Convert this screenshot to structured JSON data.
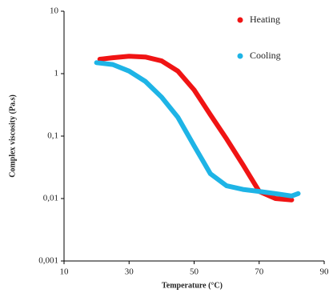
{
  "chart_data": {
    "type": "line",
    "xlabel": "Temperature (°C)",
    "ylabel": "Complex viscosity (Pa.s)",
    "xlim": [
      10,
      90
    ],
    "xticks": [
      10,
      30,
      50,
      70,
      90
    ],
    "ylim": [
      0.001,
      10
    ],
    "yticks": [
      {
        "value": 0.001,
        "label": "0,001"
      },
      {
        "value": 0.01,
        "label": "0,01"
      },
      {
        "value": 0.1,
        "label": "0,1"
      },
      1,
      10
    ],
    "log_y": true,
    "grid": false,
    "legend": "upper right",
    "series": [
      {
        "name": "Heating",
        "color": "#f01414",
        "x": [
          21,
          25,
          30,
          35,
          40,
          45,
          50,
          55,
          60,
          65,
          70,
          75,
          80
        ],
        "values": [
          1.7,
          1.8,
          1.9,
          1.85,
          1.6,
          1.1,
          0.55,
          0.22,
          0.09,
          0.035,
          0.013,
          0.01,
          0.0095
        ]
      },
      {
        "name": "Cooling",
        "color": "#1eb4e6",
        "x": [
          20,
          25,
          30,
          35,
          40,
          45,
          50,
          55,
          60,
          65,
          70,
          75,
          80,
          82
        ],
        "values": [
          1.5,
          1.4,
          1.1,
          0.75,
          0.42,
          0.2,
          0.07,
          0.025,
          0.016,
          0.014,
          0.013,
          0.012,
          0.011,
          0.012
        ]
      }
    ]
  }
}
